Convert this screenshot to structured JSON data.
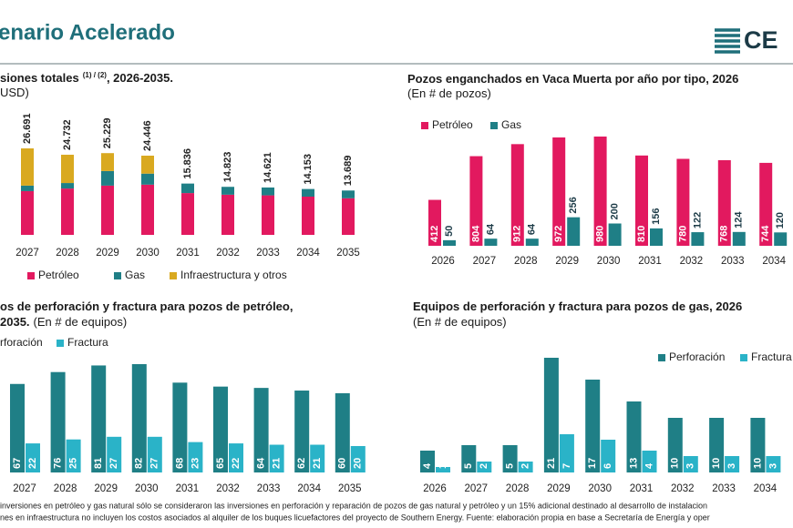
{
  "header": {
    "title": "enario Acelerado",
    "logo": "CE"
  },
  "chart_data": [
    {
      "type": "bar",
      "stacked": true,
      "title": "siones totales",
      "title_note": "(1) / (2)",
      "title_end": ", 2026-2035.",
      "subtitle": "USD)",
      "categories": [
        "2027",
        "2028",
        "2029",
        "2030",
        "2031",
        "2032",
        "2033",
        "2034",
        "2035"
      ],
      "series": [
        {
          "name": "Petróleo",
          "color": "#e2195f",
          "values": [
            13500,
            14300,
            15200,
            15500,
            12900,
            12400,
            12200,
            11800,
            11300
          ]
        },
        {
          "name": "Gas",
          "color": "#1f7f86",
          "values": [
            1700,
            1700,
            4500,
            3400,
            2936,
            2423,
            2421,
            2353,
            2389
          ]
        },
        {
          "name": "Infraestructura y otros",
          "color": "#d9a920",
          "values": [
            11491,
            8732,
            5529,
            5546,
            0,
            0,
            0,
            0,
            0
          ]
        }
      ],
      "totals": {
        "values": [
          26691,
          24732,
          25229,
          24446,
          15836,
          14823,
          14621,
          14153,
          13689
        ],
        "value_labels": [
          "26.691",
          "24.732",
          "25.229",
          "24.446",
          "15.836",
          "14.823",
          "14.621",
          "14.153",
          "13.689"
        ]
      }
    },
    {
      "type": "bar",
      "title": "Pozos enganchados en Vaca Muerta por año por tipo, 2026",
      "subtitle": "(En # de pozos)",
      "categories": [
        "2026",
        "2027",
        "2028",
        "2029",
        "2030",
        "2031",
        "2032",
        "2033",
        "2034"
      ],
      "series": [
        {
          "name": "Petróleo",
          "color": "#e2195f",
          "values": [
            412,
            804,
            912,
            972,
            980,
            810,
            780,
            768,
            744
          ]
        },
        {
          "name": "Gas",
          "color": "#1f7f86",
          "values": [
            50,
            64,
            64,
            256,
            200,
            156,
            122,
            124,
            120
          ]
        }
      ]
    },
    {
      "type": "bar",
      "title": "os de perforación y fractura para pozos de petróleo,",
      "subtitle_bold": "2035.",
      "subtitle": "(En # de equipos)",
      "categories": [
        "2027",
        "2028",
        "2029",
        "2030",
        "2031",
        "2032",
        "2033",
        "2034",
        "2035"
      ],
      "series": [
        {
          "name": "rforación",
          "color": "#1f7f86",
          "values": [
            67,
            76,
            81,
            82,
            68,
            65,
            64,
            62,
            60
          ]
        },
        {
          "name": "Fractura",
          "color": "#2ab3c8",
          "values": [
            22,
            25,
            27,
            27,
            23,
            22,
            21,
            21,
            20
          ]
        }
      ]
    },
    {
      "type": "bar",
      "title": "Equipos de perforación y fractura para pozos de gas, 2026",
      "subtitle": "(En # de equipos)",
      "categories": [
        "2026",
        "2027",
        "2028",
        "2029",
        "2030",
        "2031",
        "2032",
        "2033",
        "2034"
      ],
      "series": [
        {
          "name": "Perforación",
          "color": "#1f7f86",
          "values": [
            4,
            5,
            5,
            21,
            17,
            13,
            10,
            10,
            10
          ]
        },
        {
          "name": "Fractura",
          "color": "#2ab3c8",
          "values": [
            1,
            2,
            2,
            7,
            6,
            4,
            3,
            3,
            3
          ]
        }
      ]
    }
  ],
  "footnotes": [
    "inversiones en petróleo y gas natural sólo se consideraron las inversiones en perforación y reparación de pozos de gas natural y petróleo y un 15% adicional destinado al desarrollo de instalacion",
    "nes en infraestructura no incluyen los costos asociados al alquiler de los buques licuefactores del proyecto de Southern Energy. Fuente: elaboración propia en base a Secretaría de Energía y oper"
  ]
}
